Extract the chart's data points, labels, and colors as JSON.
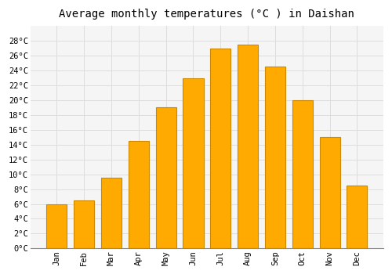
{
  "title": "Average monthly temperatures (°C ) in Daishan",
  "months": [
    "Jan",
    "Feb",
    "Mar",
    "Apr",
    "May",
    "Jun",
    "Jul",
    "Aug",
    "Sep",
    "Oct",
    "Nov",
    "Dec"
  ],
  "values": [
    6.0,
    6.5,
    9.5,
    14.5,
    19.0,
    23.0,
    27.0,
    27.5,
    24.5,
    20.0,
    15.0,
    8.5
  ],
  "bar_color": "#FFAA00",
  "bar_edge_color": "#CC8800",
  "background_color": "#FFFFFF",
  "plot_bg_color": "#F5F5F5",
  "grid_color": "#DDDDDD",
  "ylim": [
    0,
    30
  ],
  "yticks": [
    0,
    2,
    4,
    6,
    8,
    10,
    12,
    14,
    16,
    18,
    20,
    22,
    24,
    26,
    28
  ],
  "title_fontsize": 10,
  "tick_fontsize": 7.5,
  "title_font_family": "monospace",
  "tick_font_family": "monospace",
  "bar_width": 0.75
}
